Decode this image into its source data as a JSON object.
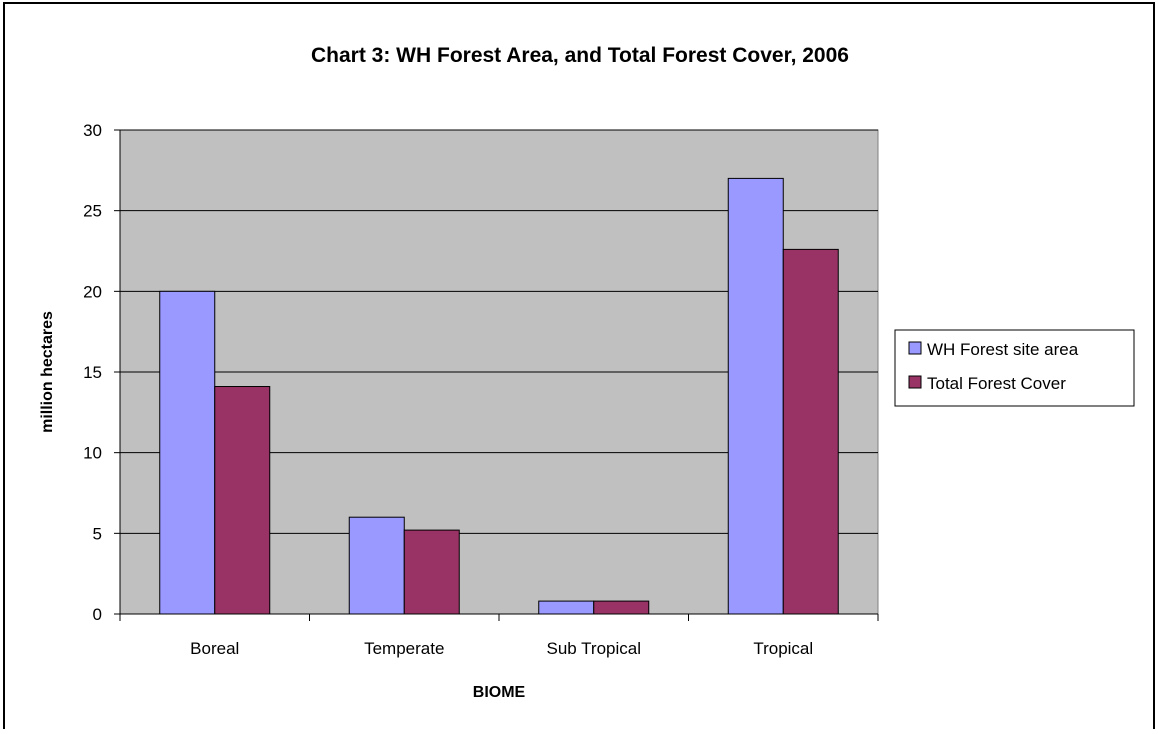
{
  "chart_data": {
    "type": "bar",
    "title": "Chart 3:  WH Forest Area, and Total Forest Cover, 2006",
    "xlabel": "BIOME",
    "ylabel": "million hectares",
    "categories": [
      "Boreal",
      "Temperate",
      "Sub Tropical",
      "Tropical"
    ],
    "series": [
      {
        "name": "WH Forest site area",
        "values": [
          20.0,
          6.0,
          0.8,
          27.0
        ]
      },
      {
        "name": "Total Forest Cover",
        "values": [
          14.1,
          5.2,
          0.8,
          22.6
        ]
      }
    ],
    "ylim": [
      0,
      30
    ],
    "yticks": [
      0,
      5,
      10,
      15,
      20,
      25,
      30
    ],
    "grid": true,
    "legend_position": "right"
  },
  "colors": {
    "plot_background": "#c0c0c0",
    "series": [
      "#9999ff",
      "#993366"
    ],
    "gridline": "#000000",
    "bar_outline": "#000000"
  }
}
